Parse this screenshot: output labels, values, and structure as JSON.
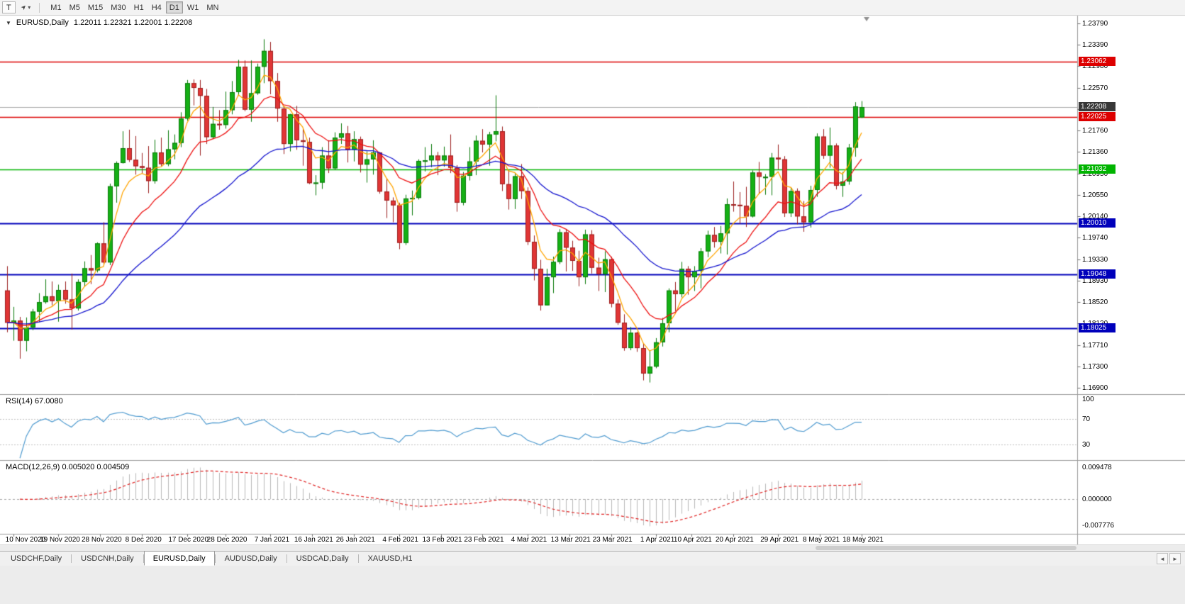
{
  "toolbar": {
    "t_button": "T",
    "icons": {
      "pointer_tool": "➤",
      "dropdown_caret": "▾"
    },
    "timeframes": [
      "M1",
      "M5",
      "M15",
      "M30",
      "H1",
      "H4",
      "D1",
      "W1",
      "MN"
    ],
    "active_timeframe": "D1"
  },
  "chart": {
    "collapse_icon": "▼",
    "symbol_title": "EURUSD,Daily",
    "ohlc_display": "1.22011 1.22321 1.22001 1.22208",
    "current_price": {
      "text": "1.22208",
      "value": 1.22208,
      "badge_color": "#383838",
      "line_color": "#a8a8a8"
    },
    "price_axis_labels": [
      "1.23790",
      "1.23390",
      "1.22980",
      "1.22570",
      "1.22170",
      "1.21760",
      "1.21360",
      "1.20950",
      "1.20550",
      "1.20140",
      "1.19740",
      "1.19330",
      "1.18930",
      "1.18520",
      "1.18120",
      "1.17710",
      "1.17300",
      "1.16900"
    ],
    "hlines": [
      {
        "label": "1.23062",
        "value": 1.23062,
        "color": "#dd0000",
        "width": 1.5
      },
      {
        "label": "1.22025",
        "value": 1.22025,
        "color": "#dd0000",
        "width": 1.5
      },
      {
        "label": "1.21032",
        "value": 1.21032,
        "color": "#00b400",
        "width": 1.5
      },
      {
        "label": "1.20010",
        "value": 1.2001,
        "color": "#0000bb",
        "width": 2
      },
      {
        "label": "1.19048",
        "value": 1.19048,
        "color": "#0000bb",
        "width": 2
      },
      {
        "label": "1.18025",
        "value": 1.18025,
        "color": "#0000bb",
        "width": 2
      }
    ]
  },
  "chart_data": {
    "type": "candlestick",
    "symbol": "EURUSD",
    "timeframe": "Daily",
    "price_axis": {
      "top_price": 1.2379,
      "bottom_price": 1.169
    },
    "colors": {
      "up": "#15b015",
      "up_edge": "#0a7a0a",
      "down": "#e03535",
      "down_edge": "#9c1f1f"
    },
    "moving_averages": [
      {
        "period": 5,
        "color": "#ffa500"
      },
      {
        "period": 13,
        "color": "#ee1111"
      },
      {
        "period": 34,
        "color": "#1515cf"
      }
    ],
    "candles": [
      [
        1.1874,
        1.192,
        1.1795,
        1.1813
      ],
      [
        1.1813,
        1.1843,
        1.1779,
        1.1817
      ],
      [
        1.1817,
        1.1824,
        1.1745,
        1.1779
      ],
      [
        1.1779,
        1.1823,
        1.1759,
        1.1804
      ],
      [
        1.1804,
        1.1839,
        1.1799,
        1.1834
      ],
      [
        1.1834,
        1.1869,
        1.1814,
        1.1852
      ],
      [
        1.1852,
        1.1895,
        1.1849,
        1.1863
      ],
      [
        1.1863,
        1.1891,
        1.1846,
        1.1854
      ],
      [
        1.1854,
        1.1885,
        1.1815,
        1.1875
      ],
      [
        1.1875,
        1.1891,
        1.1849,
        1.1857
      ],
      [
        1.1857,
        1.1906,
        1.18,
        1.184
      ],
      [
        1.184,
        1.1895,
        1.1836,
        1.189
      ],
      [
        1.189,
        1.1929,
        1.1881,
        1.1916
      ],
      [
        1.1916,
        1.1941,
        1.1886,
        1.1912
      ],
      [
        1.1912,
        1.1965,
        1.1908,
        1.1963
      ],
      [
        1.1963,
        1.2003,
        1.1923,
        1.1927
      ],
      [
        1.1927,
        1.2076,
        1.1922,
        1.2071
      ],
      [
        1.2071,
        1.2118,
        1.204,
        1.2115
      ],
      [
        1.2115,
        1.2175,
        1.2114,
        1.2143
      ],
      [
        1.2143,
        1.2178,
        1.2117,
        1.2121
      ],
      [
        1.2121,
        1.2166,
        1.2093,
        1.2109
      ],
      [
        1.2109,
        1.2134,
        1.2095,
        1.2106
      ],
      [
        1.2106,
        1.2147,
        1.2058,
        1.2081
      ],
      [
        1.2081,
        1.2159,
        1.2076,
        1.2135
      ],
      [
        1.2135,
        1.2163,
        1.2109,
        1.2113
      ],
      [
        1.2113,
        1.2177,
        1.2109,
        1.2141
      ],
      [
        1.2141,
        1.2169,
        1.2122,
        1.2153
      ],
      [
        1.2153,
        1.2211,
        1.2145,
        1.2199
      ],
      [
        1.2199,
        1.2272,
        1.2195,
        1.2266
      ],
      [
        1.2266,
        1.2273,
        1.2224,
        1.2257
      ],
      [
        1.2257,
        1.2272,
        1.2129,
        1.2242
      ],
      [
        1.2242,
        1.2255,
        1.2151,
        1.2164
      ],
      [
        1.2164,
        1.2221,
        1.216,
        1.2189
      ],
      [
        1.2189,
        1.2215,
        1.2178,
        1.2187
      ],
      [
        1.2187,
        1.225,
        1.218,
        1.2215
      ],
      [
        1.2215,
        1.227,
        1.2207,
        1.2249
      ],
      [
        1.2249,
        1.231,
        1.2242,
        1.2297
      ],
      [
        1.2297,
        1.2309,
        1.2213,
        1.2216
      ],
      [
        1.2216,
        1.2309,
        1.2193,
        1.2247
      ],
      [
        1.2247,
        1.2303,
        1.2244,
        1.2297
      ],
      [
        1.2297,
        1.2349,
        1.2266,
        1.2327
      ],
      [
        1.2327,
        1.2344,
        1.2245,
        1.227
      ],
      [
        1.227,
        1.2285,
        1.2193,
        1.2218
      ],
      [
        1.2218,
        1.2223,
        1.2132,
        1.2151
      ],
      [
        1.2151,
        1.2208,
        1.2137,
        1.2207
      ],
      [
        1.2207,
        1.2223,
        1.214,
        1.2158
      ],
      [
        1.2158,
        1.218,
        1.211,
        1.2155
      ],
      [
        1.2155,
        1.2163,
        1.2075,
        1.2077
      ],
      [
        1.2077,
        1.2092,
        1.2054,
        1.2078
      ],
      [
        1.2078,
        1.2145,
        1.2066,
        1.2129
      ],
      [
        1.2129,
        1.2158,
        1.2096,
        1.2105
      ],
      [
        1.2105,
        1.2173,
        1.2102,
        1.2163
      ],
      [
        1.2163,
        1.219,
        1.2151,
        1.2171
      ],
      [
        1.2171,
        1.2185,
        1.2116,
        1.214
      ],
      [
        1.214,
        1.2175,
        1.2118,
        1.216
      ],
      [
        1.216,
        1.2165,
        1.2097,
        1.2112
      ],
      [
        1.2112,
        1.2137,
        1.2078,
        1.2122
      ],
      [
        1.2122,
        1.2158,
        1.2093,
        1.2135
      ],
      [
        1.2135,
        1.2136,
        1.2057,
        1.2061
      ],
      [
        1.2061,
        1.2086,
        1.2011,
        1.2044
      ],
      [
        1.2044,
        1.205,
        1.2003,
        1.2035
      ],
      [
        1.2035,
        1.204,
        1.1952,
        1.1964
      ],
      [
        1.1964,
        1.2055,
        1.196,
        1.2048
      ],
      [
        1.2048,
        1.2063,
        1.2016,
        1.2049
      ],
      [
        1.2049,
        1.2122,
        1.2046,
        1.2119
      ],
      [
        1.2119,
        1.2145,
        1.2099,
        1.212
      ],
      [
        1.212,
        1.2151,
        1.2107,
        1.2129
      ],
      [
        1.2129,
        1.2136,
        1.2092,
        1.212
      ],
      [
        1.212,
        1.2146,
        1.2108,
        1.2129
      ],
      [
        1.2129,
        1.2169,
        1.2096,
        1.2106
      ],
      [
        1.2106,
        1.2111,
        1.2023,
        1.204
      ],
      [
        1.204,
        1.2098,
        1.2035,
        1.2091
      ],
      [
        1.2091,
        1.2145,
        1.2082,
        1.2118
      ],
      [
        1.2118,
        1.2167,
        1.2092,
        1.2157
      ],
      [
        1.2157,
        1.2179,
        1.2135,
        1.215
      ],
      [
        1.215,
        1.2174,
        1.211,
        1.2169
      ],
      [
        1.2169,
        1.2243,
        1.2156,
        1.2175
      ],
      [
        1.2175,
        1.2184,
        1.2062,
        1.2075
      ],
      [
        1.2075,
        1.2101,
        1.2027,
        1.2047
      ],
      [
        1.2047,
        1.2095,
        1.2028,
        1.209
      ],
      [
        1.209,
        1.2113,
        1.2047,
        1.2062
      ],
      [
        1.2062,
        1.2069,
        1.196,
        1.1966
      ],
      [
        1.1966,
        1.1978,
        1.1893,
        1.1915
      ],
      [
        1.1915,
        1.1932,
        1.1836,
        1.1846
      ],
      [
        1.1846,
        1.1915,
        1.1846,
        1.1899
      ],
      [
        1.1899,
        1.1938,
        1.1869,
        1.1928
      ],
      [
        1.1928,
        1.199,
        1.1924,
        1.1984
      ],
      [
        1.1984,
        1.1989,
        1.191,
        1.1955
      ],
      [
        1.1955,
        1.1968,
        1.1911,
        1.193
      ],
      [
        1.193,
        1.1949,
        1.1882,
        1.1899
      ],
      [
        1.1899,
        1.1989,
        1.1886,
        1.198
      ],
      [
        1.198,
        1.1988,
        1.1906,
        1.1917
      ],
      [
        1.1917,
        1.1936,
        1.1873,
        1.1905
      ],
      [
        1.1905,
        1.1948,
        1.1871,
        1.1933
      ],
      [
        1.1933,
        1.1938,
        1.1842,
        1.1849
      ],
      [
        1.1849,
        1.1857,
        1.1809,
        1.1813
      ],
      [
        1.1813,
        1.1829,
        1.176,
        1.1765
      ],
      [
        1.1765,
        1.1805,
        1.1761,
        1.1794
      ],
      [
        1.1794,
        1.1796,
        1.1758,
        1.1765
      ],
      [
        1.1765,
        1.1774,
        1.1704,
        1.1717
      ],
      [
        1.1717,
        1.1761,
        1.17,
        1.173
      ],
      [
        1.173,
        1.1784,
        1.1727,
        1.1776
      ],
      [
        1.1776,
        1.1822,
        1.1768,
        1.1812
      ],
      [
        1.1812,
        1.1878,
        1.1795,
        1.1874
      ],
      [
        1.1874,
        1.189,
        1.1835,
        1.1867
      ],
      [
        1.1867,
        1.1928,
        1.1861,
        1.1915
      ],
      [
        1.1915,
        1.192,
        1.1866,
        1.1899
      ],
      [
        1.1899,
        1.192,
        1.1873,
        1.1911
      ],
      [
        1.1911,
        1.1954,
        1.1878,
        1.1948
      ],
      [
        1.1948,
        1.1987,
        1.1937,
        1.1979
      ],
      [
        1.1979,
        1.1994,
        1.1955,
        1.1966
      ],
      [
        1.1966,
        1.1996,
        1.1944,
        1.1982
      ],
      [
        1.1982,
        1.2048,
        1.1942,
        1.2037
      ],
      [
        1.2037,
        1.208,
        1.2023,
        1.2036
      ],
      [
        1.2036,
        1.206,
        1.2,
        1.2034
      ],
      [
        1.2034,
        1.207,
        1.1994,
        1.2014
      ],
      [
        1.2014,
        1.2101,
        1.2012,
        1.2097
      ],
      [
        1.2097,
        1.2117,
        1.2056,
        1.2089
      ],
      [
        1.2089,
        1.2094,
        1.2055,
        1.2089
      ],
      [
        1.2089,
        1.2134,
        1.2054,
        1.2125
      ],
      [
        1.2125,
        1.215,
        1.2103,
        1.2122
      ],
      [
        1.2122,
        1.2128,
        1.2013,
        1.202
      ],
      [
        1.202,
        1.2068,
        1.2013,
        1.2062
      ],
      [
        1.2062,
        1.2067,
        1.1999,
        1.2014
      ],
      [
        1.2014,
        1.2043,
        1.1985,
        1.2003
      ],
      [
        1.2003,
        1.2072,
        1.1993,
        1.2064
      ],
      [
        1.2064,
        1.2171,
        1.2051,
        1.2165
      ],
      [
        1.2165,
        1.2179,
        1.2123,
        1.2129
      ],
      [
        1.2129,
        1.2182,
        1.2106,
        1.2148
      ],
      [
        1.2148,
        1.2152,
        1.2065,
        1.2072
      ],
      [
        1.2072,
        1.2098,
        1.2051,
        1.208
      ],
      [
        1.208,
        1.2151,
        1.2074,
        1.2144
      ],
      [
        1.2144,
        1.223,
        1.2127,
        1.2222
      ],
      [
        1.22011,
        1.22321,
        1.22001,
        1.22208
      ]
    ],
    "date_labels": [
      {
        "text": "10 Nov 2020",
        "i": 1
      },
      {
        "text": "19 Nov 2020",
        "i": 8
      },
      {
        "text": "28 Nov 2020",
        "i": 14.5
      },
      {
        "text": "8 Dec 2020",
        "i": 21
      },
      {
        "text": "17 Dec 2020",
        "i": 28
      },
      {
        "text": "28 Dec 2020",
        "i": 34
      },
      {
        "text": "7 Jan 2021",
        "i": 41
      },
      {
        "text": "16 Jan 2021",
        "i": 47.5
      },
      {
        "text": "26 Jan 2021",
        "i": 54
      },
      {
        "text": "4 Feb 2021",
        "i": 61
      },
      {
        "text": "13 Feb 2021",
        "i": 67.5
      },
      {
        "text": "23 Feb 2021",
        "i": 74
      },
      {
        "text": "4 Mar 2021",
        "i": 81
      },
      {
        "text": "13 Mar 2021",
        "i": 87.5
      },
      {
        "text": "23 Mar 2021",
        "i": 94
      },
      {
        "text": "1 Apr 2021",
        "i": 101
      },
      {
        "text": "10 Apr 2021",
        "i": 106.5
      },
      {
        "text": "20 Apr 2021",
        "i": 113
      },
      {
        "text": "29 Apr 2021",
        "i": 120
      },
      {
        "text": "8 May 2021",
        "i": 126.5
      },
      {
        "text": "18 May 2021",
        "i": 133
      }
    ]
  },
  "rsi": {
    "label": "RSI(14) 67.0080",
    "period": 14,
    "value": 67.008,
    "color": "#4f9bd0",
    "axis": [
      {
        "text": "100",
        "value": 100
      },
      {
        "text": "70",
        "value": 70
      },
      {
        "text": "30",
        "value": 30
      }
    ],
    "levels": [
      70,
      30
    ]
  },
  "macd": {
    "label": "MACD(12,26,9) 0.005020 0.004509",
    "fast": 12,
    "slow": 26,
    "signal_period": 9,
    "values": {
      "macd": 0.00502,
      "signal": 0.004509
    },
    "axis": [
      {
        "text": "0.009478",
        "value": 0.009478
      },
      {
        "text": "0.000000",
        "value": 0
      },
      {
        "text": "-0.007776",
        "value": -0.007776
      }
    ],
    "histogram_color": "#b9b9b9",
    "signal_color": "#e02020"
  },
  "tabs": [
    {
      "label": "USDCHF,Daily",
      "active": false
    },
    {
      "label": "USDCNH,Daily",
      "active": false
    },
    {
      "label": "EURUSD,Daily",
      "active": true
    },
    {
      "label": "AUDUSD,Daily",
      "active": false
    },
    {
      "label": "USDCAD,Daily",
      "active": false
    },
    {
      "label": "XAUUSD,H1",
      "active": false
    }
  ],
  "tabs_bar": {
    "left_arrow": "◄",
    "right_arrow": "►"
  }
}
